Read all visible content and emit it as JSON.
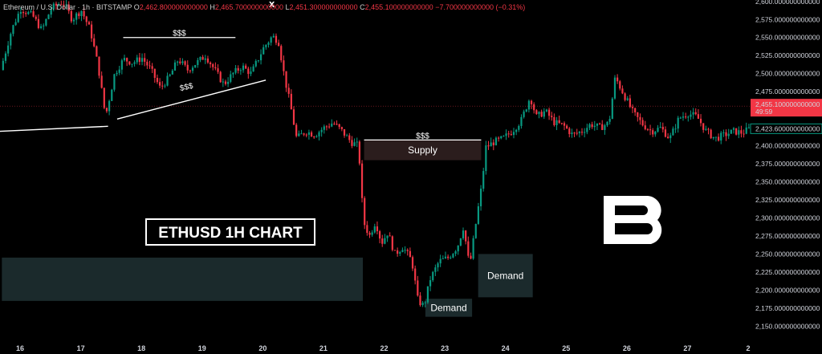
{
  "header": {
    "symbol": "Ethereum / U.S. Dollar · 1h · BITSTAMP",
    "o_label": "O",
    "o_value": "2,462.800000000000",
    "h_label": "H",
    "h_value": "2,465.700000000000",
    "l_label": "L",
    "l_value": "2,451.300000000000",
    "c_label": "C",
    "c_value": "2,455.100000000000",
    "change": "−7.700000000000 (−0.31%)"
  },
  "chart_data": {
    "type": "candlestick",
    "title": "ETHUSD 1H CHART",
    "ylim": [
      2137,
      2602
    ],
    "y_ticks": [
      "2,600.000000000000",
      "2,575.000000000000",
      "2,550.000000000000",
      "2,525.000000000000",
      "2,500.000000000000",
      "2,475.000000000000",
      "2,450.000000000000",
      "2,425.000000000000",
      "2,400.000000000000",
      "2,375.000000000000",
      "2,350.000000000000",
      "2,325.000000000000",
      "2,300.000000000000",
      "2,275.000000000000",
      "2,250.000000000000",
      "2,225.000000000000",
      "2,200.000000000000",
      "2,175.000000000000",
      "2,150.000000000000"
    ],
    "x_ticks": [
      "16",
      "17",
      "18",
      "19",
      "20",
      "21",
      "22",
      "23",
      "24",
      "25",
      "26",
      "27",
      "2"
    ],
    "x_range": [
      15.7,
      28.15
    ],
    "price_path": [
      [
        15.72,
        2505
      ],
      [
        15.9,
        2560
      ],
      [
        16.05,
        2590
      ],
      [
        16.25,
        2580
      ],
      [
        16.4,
        2560
      ],
      [
        16.55,
        2590
      ],
      [
        16.75,
        2600
      ],
      [
        16.9,
        2575
      ],
      [
        17.05,
        2588
      ],
      [
        17.2,
        2560
      ],
      [
        17.33,
        2510
      ],
      [
        17.45,
        2440
      ],
      [
        17.6,
        2500
      ],
      [
        17.75,
        2520
      ],
      [
        17.9,
        2515
      ],
      [
        18.05,
        2522
      ],
      [
        18.2,
        2505
      ],
      [
        18.35,
        2480
      ],
      [
        18.5,
        2495
      ],
      [
        18.65,
        2520
      ],
      [
        18.8,
        2505
      ],
      [
        18.95,
        2515
      ],
      [
        19.1,
        2525
      ],
      [
        19.25,
        2505
      ],
      [
        19.4,
        2485
      ],
      [
        19.55,
        2500
      ],
      [
        19.7,
        2510
      ],
      [
        19.85,
        2500
      ],
      [
        20.05,
        2535
      ],
      [
        20.2,
        2552
      ],
      [
        20.3,
        2545
      ],
      [
        20.4,
        2495
      ],
      [
        20.5,
        2455
      ],
      [
        20.6,
        2410
      ],
      [
        20.75,
        2420
      ],
      [
        20.9,
        2415
      ],
      [
        21.05,
        2425
      ],
      [
        21.2,
        2432
      ],
      [
        21.35,
        2420
      ],
      [
        21.5,
        2405
      ],
      [
        21.62,
        2400
      ],
      [
        21.7,
        2295
      ],
      [
        21.8,
        2275
      ],
      [
        21.9,
        2295
      ],
      [
        22.0,
        2265
      ],
      [
        22.1,
        2280
      ],
      [
        22.22,
        2250
      ],
      [
        22.35,
        2260
      ],
      [
        22.5,
        2240
      ],
      [
        22.6,
        2185
      ],
      [
        22.7,
        2178
      ],
      [
        22.8,
        2215
      ],
      [
        22.95,
        2240
      ],
      [
        23.1,
        2245
      ],
      [
        23.25,
        2260
      ],
      [
        23.35,
        2288
      ],
      [
        23.45,
        2232
      ],
      [
        23.55,
        2290
      ],
      [
        23.65,
        2345
      ],
      [
        23.72,
        2398
      ],
      [
        23.85,
        2405
      ],
      [
        24.0,
        2410
      ],
      [
        24.15,
        2420
      ],
      [
        24.3,
        2435
      ],
      [
        24.45,
        2468
      ],
      [
        24.55,
        2440
      ],
      [
        24.7,
        2448
      ],
      [
        24.85,
        2432
      ],
      [
        25.0,
        2428
      ],
      [
        25.15,
        2415
      ],
      [
        25.3,
        2420
      ],
      [
        25.45,
        2430
      ],
      [
        25.6,
        2425
      ],
      [
        25.75,
        2432
      ],
      [
        25.85,
        2495
      ],
      [
        26.0,
        2470
      ],
      [
        26.15,
        2445
      ],
      [
        26.3,
        2430
      ],
      [
        26.45,
        2420
      ],
      [
        26.6,
        2425
      ],
      [
        26.75,
        2410
      ],
      [
        26.9,
        2438
      ],
      [
        27.05,
        2445
      ],
      [
        27.2,
        2440
      ],
      [
        27.35,
        2420
      ],
      [
        27.5,
        2410
      ],
      [
        27.65,
        2415
      ],
      [
        27.8,
        2420
      ],
      [
        27.95,
        2418
      ],
      [
        28.05,
        2423
      ]
    ],
    "last_price_label": "2,455.100000000000",
    "countdown": "49:59",
    "prev_price_label": "2,423.600000000000",
    "up_color": "#089981",
    "down_color": "#f23645",
    "zones": [
      {
        "label": "Supply",
        "x0": 21.67,
        "x1": 23.6,
        "y0": 2408,
        "y1": 2380
      },
      {
        "label": "Demand",
        "x0": 23.55,
        "x1": 24.45,
        "y0": 2250,
        "y1": 2190
      },
      {
        "label": "Demand",
        "x0": 22.68,
        "x1": 23.45,
        "y0": 2188,
        "y1": 2163
      },
      {
        "label": "",
        "x0": 15.7,
        "x1": 21.65,
        "y0": 2245,
        "y1": 2185
      }
    ],
    "annotations": [
      {
        "label": "$$$",
        "x0": 17.7,
        "x1": 19.55,
        "y": 2550
      },
      {
        "label": "$$$",
        "x0": 21.67,
        "x1": 23.6,
        "y": 2408
      },
      {
        "label": "$$$",
        "x0": 17.6,
        "x1": 19.95,
        "y": 2490,
        "x1y": 2502,
        "angled": true
      },
      {
        "label": "x",
        "x": 20.15,
        "y": 2592
      }
    ]
  }
}
